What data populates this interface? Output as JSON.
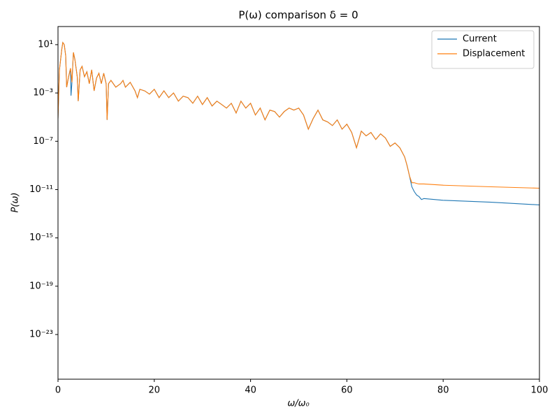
{
  "chart_data": {
    "type": "line",
    "title": "P(ω) comparison δ = 0",
    "xlabel": "ω/ω₀",
    "ylabel": "P(ω)",
    "log_y": true,
    "grid": false,
    "legend": "upper right",
    "x": [
      0,
      0.3,
      0.8,
      1,
      1.3,
      1.6,
      1.8,
      2.2,
      2.6,
      2.7,
      2.9,
      3.2,
      3.5,
      4,
      4.2,
      4.6,
      5,
      5.5,
      6,
      6.5,
      7,
      7.5,
      8,
      8.5,
      9,
      9.5,
      10,
      10.2,
      10.5,
      11,
      12,
      13,
      13.5,
      14,
      15,
      16,
      16.5,
      17,
      18,
      19,
      20,
      21,
      22,
      23,
      24,
      25,
      26,
      27,
      28,
      29,
      30,
      31,
      32,
      33,
      34,
      35,
      36,
      37,
      38,
      39,
      40,
      41,
      42,
      43,
      44,
      45,
      46,
      47,
      48,
      49,
      50,
      51,
      52,
      53,
      54,
      55,
      56,
      57,
      58,
      59,
      60,
      61,
      62,
      63,
      64,
      65,
      66,
      67,
      68,
      69,
      70,
      71,
      72,
      72.5,
      73,
      73.5,
      74,
      74.5,
      75,
      75.5,
      76,
      80,
      90,
      100
    ],
    "series": [
      {
        "name": "Current",
        "color": "#1f77b4",
        "values": [
          7.6e-06,
          0.083,
          4.5,
          15,
          10,
          1.2,
          0.003,
          0.022,
          0.11,
          0.0006,
          0.0076,
          2.3,
          0.62,
          0.022,
          0.00021,
          0.083,
          0.16,
          0.022,
          0.056,
          0.0059,
          0.083,
          0.0015,
          0.017,
          0.043,
          0.0059,
          0.043,
          0.0059,
          5.9e-06,
          0.0059,
          0.011,
          0.003,
          0.0059,
          0.011,
          0.003,
          0.0076,
          0.0015,
          0.00041,
          0.002,
          0.0015,
          0.0008,
          0.002,
          0.00041,
          0.0015,
          0.00041,
          0.001,
          0.00021,
          0.00054,
          0.00041,
          0.00014,
          0.00054,
          0.00011,
          0.00041,
          8.3e-05,
          0.00021,
          0.00011,
          5.6e-05,
          0.00014,
          2.2e-05,
          0.00021,
          5.6e-05,
          0.00014,
          1.5e-05,
          5.6e-05,
          5.9e-06,
          3.8e-05,
          2.9e-05,
          1e-05,
          2.9e-05,
          5.6e-05,
          3.8e-05,
          5.6e-05,
          1.5e-05,
          1e-06,
          7.6e-06,
          3.8e-05,
          5.9e-06,
          4e-06,
          2e-06,
          5.9e-06,
          1e-06,
          2.6e-06,
          5.4e-07,
          2.9e-08,
          6.9e-07,
          2.8e-07,
          5.4e-07,
          1.4e-07,
          4.1e-07,
          1.9e-07,
          3.8e-08,
          7.2e-08,
          2.9e-08,
          5.1e-09,
          1e-09,
          1.4e-10,
          1.7e-11,
          6.8e-12,
          3.5e-12,
          2.6e-12,
          1.5e-12,
          1.8e-12,
          1.3e-12,
          9e-13,
          5.4e-13
        ]
      },
      {
        "name": "Displacement",
        "color": "#ff7f0e",
        "values": [
          7.6e-06,
          0.083,
          4.5,
          15,
          10,
          1.2,
          0.003,
          0.022,
          0.11,
          0.05,
          0.0076,
          2.3,
          0.62,
          0.022,
          0.00021,
          0.083,
          0.16,
          0.022,
          0.056,
          0.0059,
          0.083,
          0.0015,
          0.017,
          0.043,
          0.0059,
          0.043,
          0.0059,
          5.9e-06,
          0.0059,
          0.011,
          0.003,
          0.0059,
          0.011,
          0.003,
          0.0076,
          0.0015,
          0.00041,
          0.002,
          0.0015,
          0.0008,
          0.002,
          0.00041,
          0.0015,
          0.00041,
          0.001,
          0.00021,
          0.00054,
          0.00041,
          0.00014,
          0.00054,
          0.00011,
          0.00041,
          8.3e-05,
          0.00021,
          0.00011,
          5.6e-05,
          0.00014,
          2.2e-05,
          0.00021,
          5.6e-05,
          0.00014,
          1.5e-05,
          5.6e-05,
          5.9e-06,
          3.8e-05,
          2.9e-05,
          1e-05,
          2.9e-05,
          5.6e-05,
          3.8e-05,
          5.6e-05,
          1.5e-05,
          1e-06,
          7.6e-06,
          3.8e-05,
          5.9e-06,
          4e-06,
          2e-06,
          5.9e-06,
          1e-06,
          2.6e-06,
          5.4e-07,
          2.9e-08,
          6.9e-07,
          2.8e-07,
          5.4e-07,
          1.4e-07,
          4.1e-07,
          1.9e-07,
          3.8e-08,
          7.2e-08,
          2.9e-08,
          5.1e-09,
          1e-09,
          1.4e-10,
          3.7e-11,
          3.7e-11,
          3.2e-11,
          2.9e-11,
          2.9e-11,
          2.9e-11,
          2.3e-11,
          1.7e-11,
          1.3e-11
        ]
      }
    ],
    "xlim": [
      0,
      100
    ],
    "xticks": [
      0,
      20,
      40,
      60,
      80,
      100
    ],
    "ylim": [
      2e-27,
      316
    ],
    "yticks": [
      {
        "value": 10,
        "label": "10¹"
      },
      {
        "value": 0.001,
        "label": "10⁻³"
      },
      {
        "value": 1e-07,
        "label": "10⁻⁷"
      },
      {
        "value": 1e-11,
        "label": "10⁻¹¹"
      },
      {
        "value": 1e-15,
        "label": "10⁻¹⁵"
      },
      {
        "value": 1e-19,
        "label": "10⁻¹⁹"
      },
      {
        "value": 1e-23,
        "label": "10⁻²³"
      }
    ]
  }
}
